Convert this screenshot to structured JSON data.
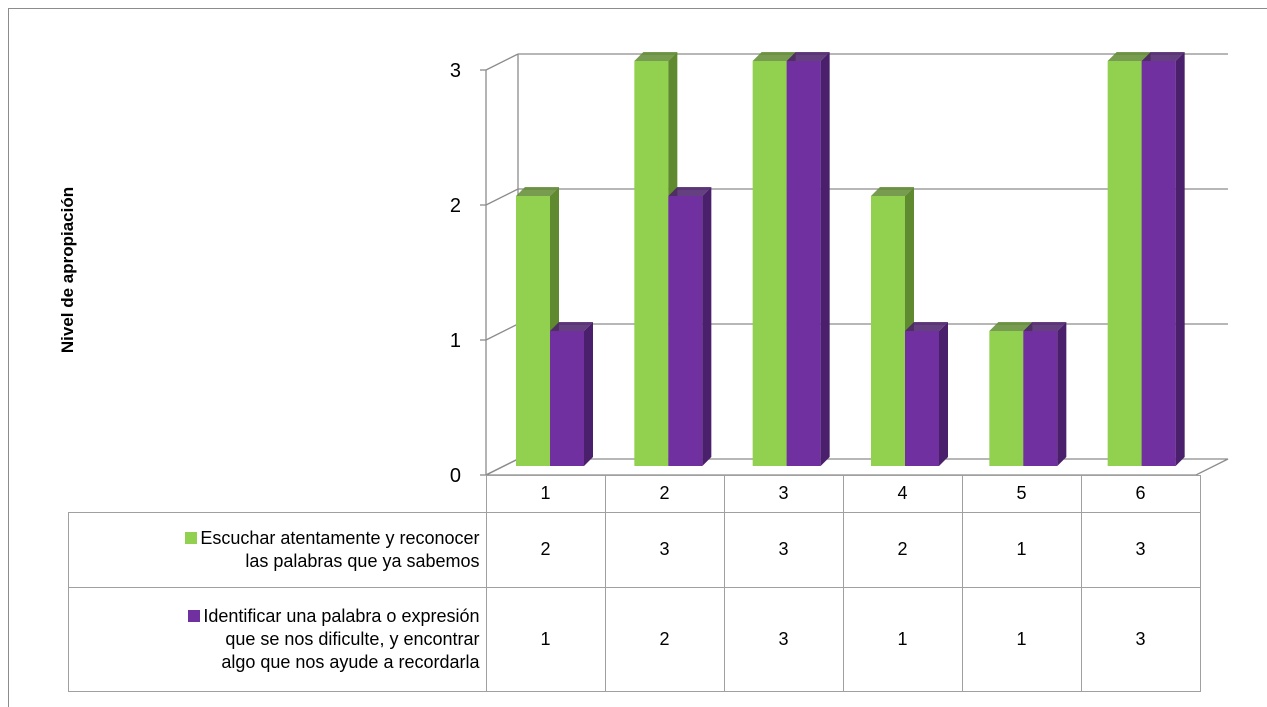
{
  "chart_data": {
    "type": "bar",
    "ylabel": "Nivel de apropiación",
    "xlabel": "",
    "title": "",
    "categories": [
      "1",
      "2",
      "3",
      "4",
      "5",
      "6"
    ],
    "ylim": [
      0,
      3
    ],
    "yticks": [
      0,
      1,
      2,
      3
    ],
    "grid": true,
    "legend": "data-table",
    "series": [
      {
        "name": "Escuchar atentamente y reconocer las palabras que ya sabemos",
        "name_lines": [
          "Escuchar atentamente y reconocer",
          "las palabras que ya sabemos"
        ],
        "values": [
          2,
          3,
          3,
          2,
          1,
          3
        ],
        "color": "#92d050",
        "side_color": "#5f8a30"
      },
      {
        "name": "Identificar una palabra o expresión que se nos dificulte, y encontrar algo que nos ayude a recordarla",
        "name_lines": [
          "Identificar una palabra o expresión",
          "que se nos dificulte, y encontrar",
          "algo que nos ayude a recordarla"
        ],
        "values": [
          1,
          2,
          3,
          1,
          1,
          3
        ],
        "color": "#7030a0",
        "side_color": "#4a1f6b"
      }
    ]
  }
}
